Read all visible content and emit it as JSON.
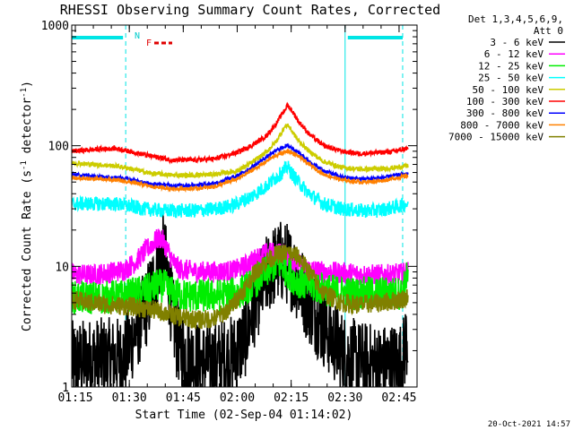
{
  "chart_data": {
    "type": "line",
    "title": "RHESSI Observing Summary Count Rates, Corrected",
    "xlabel": "Start Time (02-Sep-04 01:14:02)",
    "ylabel_main": "Corrected Count Rate (s",
    "ylabel_sup1": "-1",
    "ylabel_mid": " detector",
    "ylabel_sup2": "-1",
    "ylabel_end": ")",
    "yscale": "log",
    "xlim_minutes": [
      0,
      96
    ],
    "ylim": [
      1,
      1000
    ],
    "x_ticks": [
      {
        "label": "01:15",
        "minute": 1
      },
      {
        "label": "01:30",
        "minute": 16
      },
      {
        "label": "01:45",
        "minute": 31
      },
      {
        "label": "02:00",
        "minute": 46
      },
      {
        "label": "02:15",
        "minute": 61
      },
      {
        "label": "02:30",
        "minute": 76
      },
      {
        "label": "02:45",
        "minute": 91
      }
    ],
    "y_ticks": [
      {
        "label": "1",
        "value": 1
      },
      {
        "label": "10",
        "value": 10
      },
      {
        "label": "100",
        "value": 100
      },
      {
        "label": "1000",
        "value": 1000
      }
    ],
    "legend_header": [
      "Det 1,3,4,5,6,9,",
      "Att 0"
    ],
    "legend_position": "right",
    "night_markers_minutes": [
      0,
      15,
      76,
      92
    ],
    "night_bar_color": "#00e5e5",
    "flag_labels": [
      {
        "text": "N",
        "color": "#00cccc"
      },
      {
        "text": "F",
        "color": "#e00000"
      }
    ],
    "series": [
      {
        "name": "3 - 6 keV",
        "color": "#000000",
        "points": [
          [
            0,
            1.6
          ],
          [
            6,
            1.7
          ],
          [
            12,
            1.7
          ],
          [
            15,
            1.8
          ],
          [
            16,
            2.2
          ],
          [
            18,
            3
          ],
          [
            20,
            4
          ],
          [
            22,
            6
          ],
          [
            24,
            10
          ],
          [
            25,
            13
          ],
          [
            26,
            11
          ],
          [
            27,
            7
          ],
          [
            28,
            4
          ],
          [
            29,
            2.6
          ],
          [
            31,
            2
          ],
          [
            35,
            1.6
          ],
          [
            40,
            1.6
          ],
          [
            45,
            1.8
          ],
          [
            48,
            2.5
          ],
          [
            50,
            4
          ],
          [
            52,
            6
          ],
          [
            54,
            8
          ],
          [
            56,
            10
          ],
          [
            58,
            11
          ],
          [
            60,
            10.5
          ],
          [
            62,
            8.5
          ],
          [
            64,
            6.5
          ],
          [
            66,
            5
          ],
          [
            68,
            4
          ],
          [
            70,
            3.2
          ],
          [
            72,
            2.6
          ],
          [
            74,
            2.2
          ],
          [
            76,
            1.8
          ],
          [
            80,
            1.6
          ],
          [
            86,
            1.5
          ],
          [
            92,
            1.6
          ],
          [
            93,
            2.5
          ]
        ]
      },
      {
        "name": "6 - 12 keV",
        "color": "#ff00ff",
        "points": [
          [
            0,
            8.5
          ],
          [
            6,
            8.5
          ],
          [
            12,
            9
          ],
          [
            15,
            9.5
          ],
          [
            18,
            11
          ],
          [
            20,
            13
          ],
          [
            22,
            15
          ],
          [
            24,
            17
          ],
          [
            25,
            17
          ],
          [
            26,
            15
          ],
          [
            28,
            11
          ],
          [
            30,
            9.5
          ],
          [
            35,
            9
          ],
          [
            40,
            9
          ],
          [
            45,
            9.2
          ],
          [
            48,
            10
          ],
          [
            50,
            11
          ],
          [
            52,
            12
          ],
          [
            54,
            12.8
          ],
          [
            56,
            13
          ],
          [
            58,
            12.8
          ],
          [
            60,
            12
          ],
          [
            62,
            11
          ],
          [
            64,
            10
          ],
          [
            66,
            9.5
          ],
          [
            70,
            9
          ],
          [
            76,
            8.8
          ],
          [
            82,
            8.5
          ],
          [
            88,
            8.5
          ],
          [
            92,
            8.7
          ],
          [
            93,
            9
          ]
        ]
      },
      {
        "name": "12 - 25 keV",
        "color": "#00ee00",
        "points": [
          [
            0,
            5.5
          ],
          [
            8,
            5.5
          ],
          [
            15,
            5.7
          ],
          [
            18,
            6
          ],
          [
            22,
            6.5
          ],
          [
            24,
            7
          ],
          [
            26,
            6.8
          ],
          [
            28,
            6
          ],
          [
            32,
            5.7
          ],
          [
            40,
            5.7
          ],
          [
            46,
            6
          ],
          [
            50,
            7
          ],
          [
            53,
            8.5
          ],
          [
            56,
            10
          ],
          [
            58,
            10.5
          ],
          [
            60,
            9
          ],
          [
            62,
            7.8
          ],
          [
            65,
            7
          ],
          [
            70,
            6.5
          ],
          [
            76,
            6
          ],
          [
            84,
            6
          ],
          [
            90,
            6
          ],
          [
            92,
            6
          ],
          [
            93,
            8
          ]
        ]
      },
      {
        "name": "25 - 50 keV",
        "color": "#00ffff",
        "points": [
          [
            0,
            33
          ],
          [
            8,
            33
          ],
          [
            12,
            33
          ],
          [
            15,
            32
          ],
          [
            20,
            30
          ],
          [
            25,
            29
          ],
          [
            30,
            29
          ],
          [
            35,
            29
          ],
          [
            40,
            30
          ],
          [
            45,
            32
          ],
          [
            50,
            38
          ],
          [
            54,
            46
          ],
          [
            57,
            55
          ],
          [
            59,
            62
          ],
          [
            60,
            67
          ],
          [
            61,
            60
          ],
          [
            63,
            50
          ],
          [
            66,
            40
          ],
          [
            70,
            33
          ],
          [
            75,
            30
          ],
          [
            80,
            29
          ],
          [
            85,
            29
          ],
          [
            90,
            31
          ],
          [
            93,
            33
          ]
        ]
      },
      {
        "name": "50 - 100 keV",
        "color": "#cccc00",
        "points": [
          [
            0,
            72
          ],
          [
            6,
            70
          ],
          [
            12,
            68
          ],
          [
            16,
            65
          ],
          [
            22,
            59
          ],
          [
            28,
            57
          ],
          [
            34,
            57
          ],
          [
            40,
            58
          ],
          [
            46,
            62
          ],
          [
            50,
            72
          ],
          [
            54,
            88
          ],
          [
            57,
            110
          ],
          [
            59,
            140
          ],
          [
            60,
            150
          ],
          [
            61,
            135
          ],
          [
            63,
            110
          ],
          [
            66,
            90
          ],
          [
            70,
            74
          ],
          [
            75,
            66
          ],
          [
            80,
            64
          ],
          [
            86,
            64
          ],
          [
            90,
            66
          ],
          [
            93,
            68
          ]
        ]
      },
      {
        "name": "100 - 300 keV",
        "color": "#ff0000",
        "points": [
          [
            0,
            90
          ],
          [
            6,
            93
          ],
          [
            12,
            95
          ],
          [
            16,
            90
          ],
          [
            22,
            82
          ],
          [
            28,
            76
          ],
          [
            34,
            76
          ],
          [
            40,
            78
          ],
          [
            46,
            88
          ],
          [
            50,
            100
          ],
          [
            54,
            120
          ],
          [
            57,
            155
          ],
          [
            59,
            195
          ],
          [
            60,
            215
          ],
          [
            61,
            200
          ],
          [
            63,
            160
          ],
          [
            66,
            125
          ],
          [
            70,
            100
          ],
          [
            75,
            90
          ],
          [
            80,
            86
          ],
          [
            86,
            88
          ],
          [
            90,
            90
          ],
          [
            93,
            95
          ]
        ]
      },
      {
        "name": "300 - 800 keV",
        "color": "#0000ff",
        "points": [
          [
            0,
            58
          ],
          [
            6,
            56
          ],
          [
            12,
            55
          ],
          [
            16,
            53
          ],
          [
            22,
            48
          ],
          [
            28,
            47
          ],
          [
            34,
            47
          ],
          [
            40,
            49
          ],
          [
            46,
            56
          ],
          [
            50,
            66
          ],
          [
            54,
            80
          ],
          [
            57,
            92
          ],
          [
            59,
            98
          ],
          [
            60,
            100
          ],
          [
            61,
            97
          ],
          [
            63,
            88
          ],
          [
            66,
            74
          ],
          [
            70,
            62
          ],
          [
            75,
            55
          ],
          [
            80,
            53
          ],
          [
            86,
            54
          ],
          [
            90,
            57
          ],
          [
            93,
            58
          ]
        ]
      },
      {
        "name": "800 - 7000 keV",
        "color": "#ff8000",
        "points": [
          [
            0,
            54
          ],
          [
            6,
            53
          ],
          [
            12,
            52
          ],
          [
            16,
            50
          ],
          [
            22,
            46
          ],
          [
            28,
            44
          ],
          [
            34,
            44
          ],
          [
            40,
            46
          ],
          [
            46,
            53
          ],
          [
            50,
            62
          ],
          [
            54,
            74
          ],
          [
            57,
            84
          ],
          [
            59,
            88
          ],
          [
            60,
            90
          ],
          [
            61,
            88
          ],
          [
            63,
            82
          ],
          [
            66,
            70
          ],
          [
            70,
            58
          ],
          [
            75,
            52
          ],
          [
            80,
            50
          ],
          [
            86,
            51
          ],
          [
            90,
            54
          ],
          [
            93,
            56
          ]
        ]
      },
      {
        "name": "7000 - 15000 keV",
        "color": "#808000",
        "points": [
          [
            0,
            5.3
          ],
          [
            5,
            5
          ],
          [
            10,
            4.8
          ],
          [
            15,
            4.7
          ],
          [
            20,
            4.5
          ],
          [
            25,
            4.2
          ],
          [
            30,
            3.8
          ],
          [
            35,
            3.6
          ],
          [
            40,
            3.7
          ],
          [
            44,
            4.5
          ],
          [
            48,
            6.5
          ],
          [
            51,
            9
          ],
          [
            54,
            11
          ],
          [
            57,
            12.5
          ],
          [
            60,
            13
          ],
          [
            63,
            12
          ],
          [
            66,
            9
          ],
          [
            70,
            6
          ],
          [
            75,
            5
          ],
          [
            80,
            4.8
          ],
          [
            86,
            5
          ],
          [
            90,
            5.2
          ],
          [
            93,
            5.5
          ]
        ]
      }
    ]
  },
  "timestamp": "20-Oct-2021 14:57"
}
